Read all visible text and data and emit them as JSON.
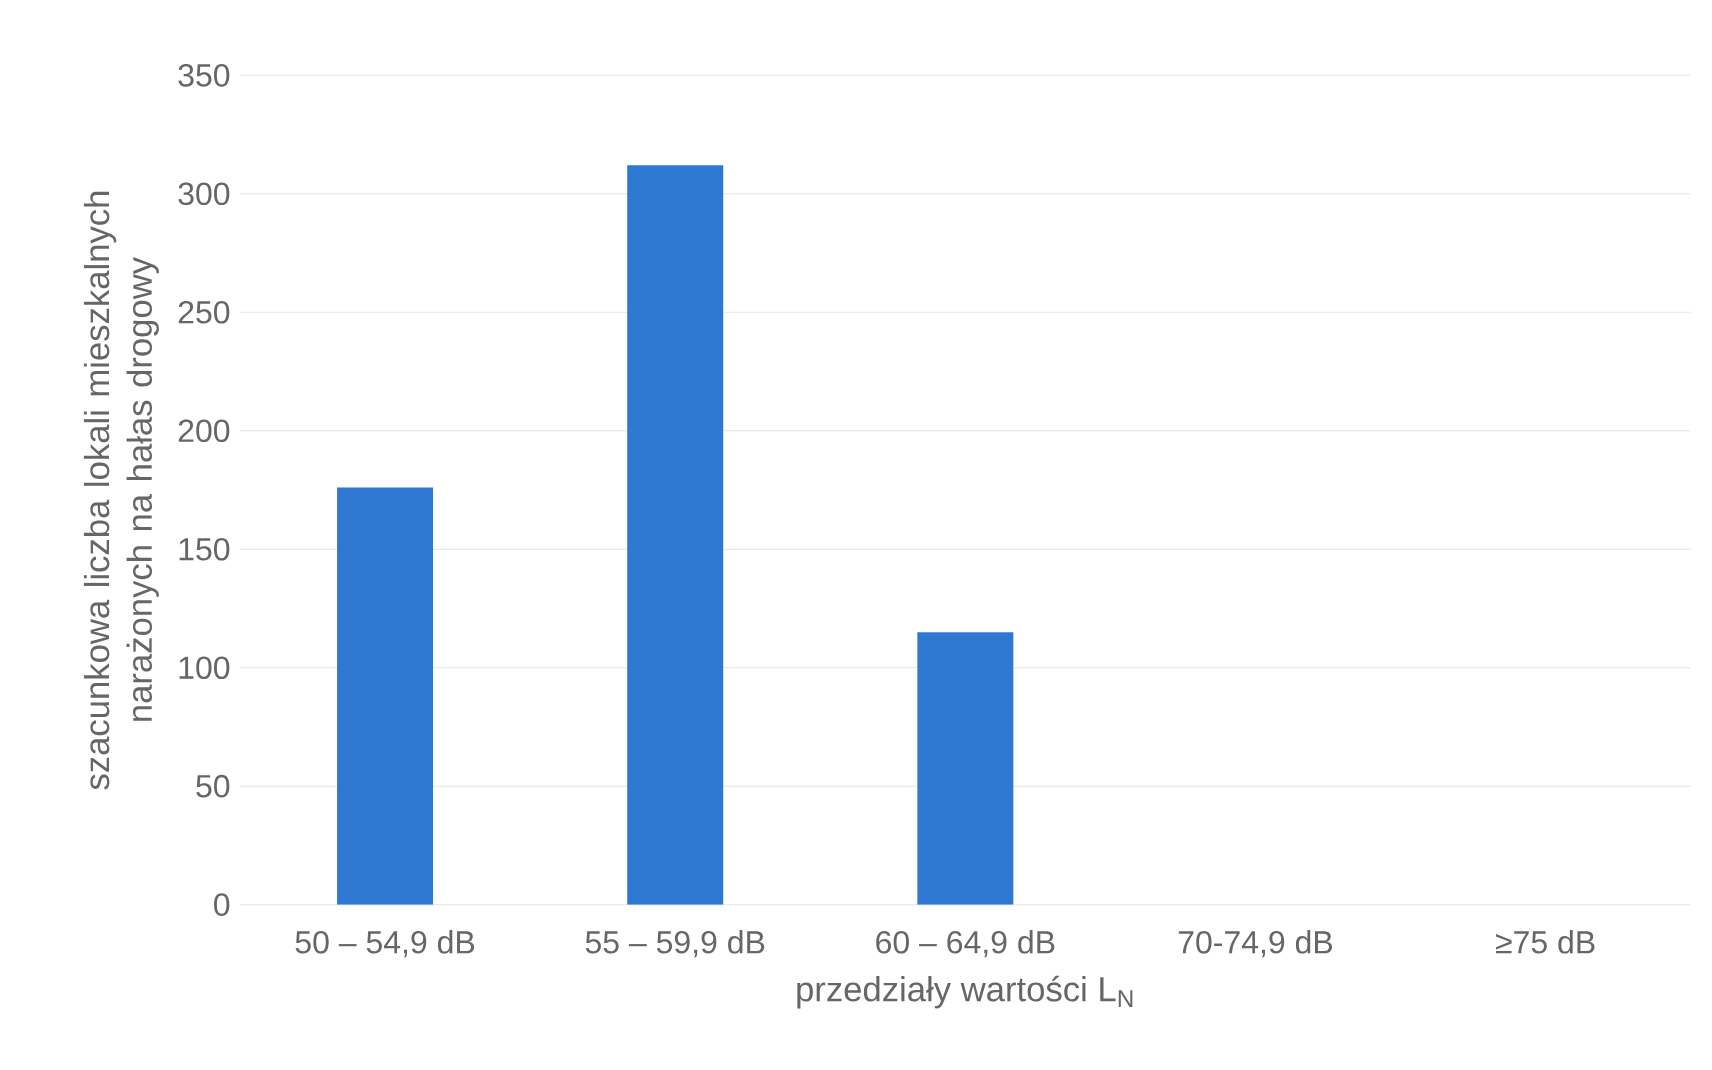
{
  "chart_data": {
    "type": "bar",
    "xlabel": "przedziały wartości L$_{N}$",
    "ylabel": "szacunkowa liczba lokali mieszkalnych narażonych na hałas drogowy",
    "categories": [
      "50 – 54,9 dB",
      "55 – 59,9 dB",
      "60 – 64,9 dB",
      "70-74,9 dB",
      "≥75 dB"
    ],
    "values": [
      176,
      312,
      115,
      0,
      0
    ],
    "color": "#2e78d2",
    "ylim": [
      0,
      350
    ],
    "yticks": [
      0,
      50,
      100,
      150,
      200,
      250,
      300,
      350
    ],
    "grid": "y"
  }
}
